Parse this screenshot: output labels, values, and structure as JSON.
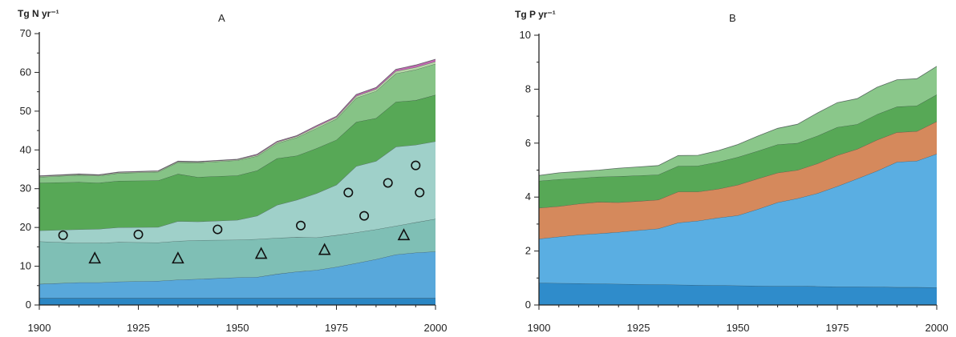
{
  "chart_data": [
    {
      "type": "area",
      "panel_label": "A",
      "ylabel": "Tg N yr⁻¹",
      "ylim": [
        0,
        70
      ],
      "yticks": [
        0,
        10,
        20,
        30,
        40,
        50,
        60,
        70
      ],
      "xlim": [
        1900,
        2000
      ],
      "xticks": [
        1900,
        1925,
        1950,
        1975,
        2000
      ],
      "x": [
        1900,
        1910,
        1915,
        1920,
        1930,
        1935,
        1940,
        1950,
        1955,
        1960,
        1965,
        1970,
        1975,
        1980,
        1985,
        1990,
        1995,
        2000
      ],
      "stacked": true,
      "series": [
        {
          "color": "#2a86c4",
          "values": [
            1.8,
            1.8,
            1.8,
            1.8,
            1.8,
            1.8,
            1.8,
            1.8,
            1.8,
            1.8,
            1.8,
            1.8,
            1.8,
            1.8,
            1.8,
            1.8,
            1.8,
            1.8
          ]
        },
        {
          "color": "#58a8db",
          "values": [
            3.6,
            4.0,
            4.0,
            4.2,
            4.4,
            4.7,
            4.9,
            5.3,
            5.4,
            6.2,
            6.8,
            7.2,
            8.0,
            9.0,
            10.0,
            11.2,
            11.7,
            12.0
          ]
        },
        {
          "color": "#7fbfb5",
          "values": [
            11.0,
            10.2,
            10.2,
            10.2,
            9.9,
            10.0,
            10.0,
            9.7,
            9.8,
            9.3,
            8.9,
            8.4,
            8.2,
            7.9,
            7.7,
            7.4,
            7.8,
            8.4
          ]
        },
        {
          "color": "#9fd0c9",
          "values": [
            2.8,
            3.5,
            3.6,
            3.8,
            4.0,
            5.1,
            4.8,
            5.1,
            6.0,
            8.5,
            9.6,
            11.4,
            13.0,
            17.1,
            17.6,
            20.4,
            20.0,
            20.0
          ]
        },
        {
          "color": "#57a856",
          "values": [
            12.3,
            12.2,
            11.9,
            12.0,
            12.0,
            12.2,
            11.5,
            11.5,
            11.7,
            12.0,
            11.4,
            11.6,
            11.6,
            11.4,
            11.1,
            11.6,
            11.5,
            12.0
          ]
        },
        {
          "color": "#86c386",
          "values": [
            1.5,
            1.8,
            1.8,
            2.0,
            2.2,
            3.0,
            3.7,
            3.9,
            3.7,
            3.9,
            4.7,
            5.2,
            5.4,
            6.2,
            7.0,
            7.3,
            7.9,
            8.0
          ]
        },
        {
          "color": "#b8d8a8",
          "values": [
            0.2,
            0.2,
            0.2,
            0.2,
            0.2,
            0.2,
            0.2,
            0.2,
            0.3,
            0.3,
            0.3,
            0.4,
            0.4,
            0.5,
            0.5,
            0.6,
            0.6,
            0.6
          ]
        },
        {
          "color": "#c06ab0",
          "values": [
            0.1,
            0.1,
            0.1,
            0.1,
            0.1,
            0.1,
            0.1,
            0.1,
            0.2,
            0.2,
            0.2,
            0.3,
            0.3,
            0.4,
            0.4,
            0.5,
            0.6,
            0.6
          ]
        }
      ],
      "markers_circle": {
        "x": [
          1906,
          1925,
          1945,
          1966,
          1978,
          1982,
          1988,
          1995,
          1996
        ],
        "y": [
          18,
          18.2,
          19.5,
          20.5,
          29,
          23,
          31.5,
          36,
          29
        ]
      },
      "markers_triangle": {
        "x": [
          1914,
          1935,
          1956,
          1972,
          1992
        ],
        "y": [
          12,
          12,
          13.2,
          14.2,
          18
        ]
      }
    },
    {
      "type": "area",
      "panel_label": "B",
      "ylabel": "Tg P yr⁻¹",
      "ylim": [
        0,
        10
      ],
      "yticks": [
        0,
        2,
        4,
        6,
        8,
        10
      ],
      "xlim": [
        1900,
        2000
      ],
      "xticks": [
        1900,
        1925,
        1950,
        1975,
        2000
      ],
      "x": [
        1900,
        1905,
        1910,
        1915,
        1920,
        1925,
        1930,
        1935,
        1940,
        1945,
        1950,
        1955,
        1960,
        1965,
        1970,
        1975,
        1980,
        1985,
        1990,
        1995,
        2000
      ],
      "stacked": true,
      "series": [
        {
          "color": "#2f8ccb",
          "values": [
            0.82,
            0.81,
            0.8,
            0.79,
            0.78,
            0.77,
            0.76,
            0.75,
            0.74,
            0.73,
            0.72,
            0.71,
            0.7,
            0.7,
            0.69,
            0.68,
            0.68,
            0.67,
            0.66,
            0.66,
            0.65
          ]
        },
        {
          "color": "#5aaee2",
          "values": [
            1.63,
            1.72,
            1.8,
            1.86,
            1.92,
            2.0,
            2.07,
            2.3,
            2.38,
            2.5,
            2.6,
            2.84,
            3.1,
            3.25,
            3.45,
            3.72,
            4.0,
            4.3,
            4.64,
            4.68,
            4.95
          ]
        },
        {
          "color": "#d5895c",
          "values": [
            1.15,
            1.13,
            1.15,
            1.17,
            1.1,
            1.08,
            1.07,
            1.15,
            1.08,
            1.07,
            1.13,
            1.13,
            1.1,
            1.05,
            1.1,
            1.15,
            1.1,
            1.15,
            1.1,
            1.1,
            1.2
          ]
        },
        {
          "color": "#57a856",
          "values": [
            1.0,
            1.0,
            0.95,
            0.93,
            0.97,
            0.95,
            0.93,
            0.95,
            0.96,
            1.0,
            1.03,
            1.03,
            1.05,
            1.0,
            1.03,
            1.04,
            0.92,
            0.95,
            0.95,
            0.95,
            1.0
          ]
        },
        {
          "color": "#8ac78a",
          "values": [
            0.2,
            0.24,
            0.25,
            0.25,
            0.3,
            0.32,
            0.34,
            0.39,
            0.39,
            0.42,
            0.47,
            0.55,
            0.6,
            0.7,
            0.85,
            0.91,
            0.95,
            1.0,
            1.0,
            1.0,
            1.05
          ]
        }
      ]
    }
  ]
}
